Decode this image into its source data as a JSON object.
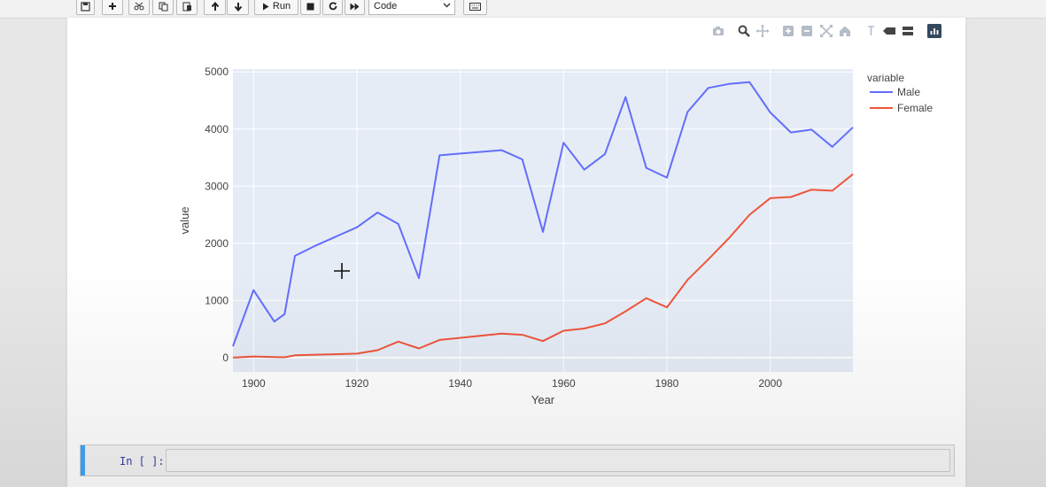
{
  "toolbar": {
    "run_label": "Run",
    "cell_type": "Code",
    "buttons": [
      "save-icon",
      "add-cell-icon",
      "cut-icon",
      "copy-icon",
      "paste-icon",
      "move-up-icon",
      "move-down-icon",
      "run-icon",
      "stop-icon",
      "restart-icon",
      "fast-forward-icon",
      "keyboard-icon"
    ]
  },
  "modebar": {
    "icons": [
      "camera-icon",
      "zoom-icon",
      "pan-icon",
      "zoom-in-icon",
      "zoom-out-icon",
      "autoscale-icon",
      "reset-axes-icon",
      "spike-lines-icon",
      "hover-closest-icon",
      "hover-compare-icon",
      "plotly-logo-icon"
    ]
  },
  "chart_data": {
    "type": "line",
    "xlabel": "Year",
    "ylabel": "value",
    "legend_title": "variable",
    "legend_position": "right",
    "xlim": [
      1896,
      2016
    ],
    "ylim": [
      -250,
      5050
    ],
    "xticks": [
      1900,
      1920,
      1940,
      1960,
      1980,
      2000
    ],
    "yticks": [
      0,
      1000,
      2000,
      3000,
      4000,
      5000
    ],
    "grid": true,
    "x": [
      1896,
      1900,
      1904,
      1906,
      1908,
      1912,
      1920,
      1924,
      1928,
      1932,
      1936,
      1948,
      1952,
      1956,
      1960,
      1964,
      1968,
      1972,
      1976,
      1980,
      1984,
      1988,
      1992,
      1996,
      2000,
      2004,
      2008,
      2012,
      2016
    ],
    "series": [
      {
        "name": "Male",
        "color": "#636efa",
        "values": [
          200,
          1180,
          630,
          760,
          1780,
          1960,
          2280,
          2540,
          2340,
          1390,
          3540,
          3630,
          3470,
          2200,
          3760,
          3290,
          3560,
          4560,
          3320,
          3150,
          4300,
          4720,
          4790,
          4820,
          4290,
          3940,
          3990,
          3690,
          4030
        ]
      },
      {
        "name": "Female",
        "color": "#ef553b",
        "values": [
          0,
          20,
          10,
          5,
          40,
          50,
          70,
          130,
          280,
          160,
          310,
          420,
          400,
          290,
          470,
          510,
          600,
          810,
          1040,
          880,
          1360,
          1720,
          2090,
          2500,
          2790,
          2810,
          2940,
          2920,
          3210
        ]
      }
    ]
  },
  "cell": {
    "prompt": "In [ ]:"
  }
}
